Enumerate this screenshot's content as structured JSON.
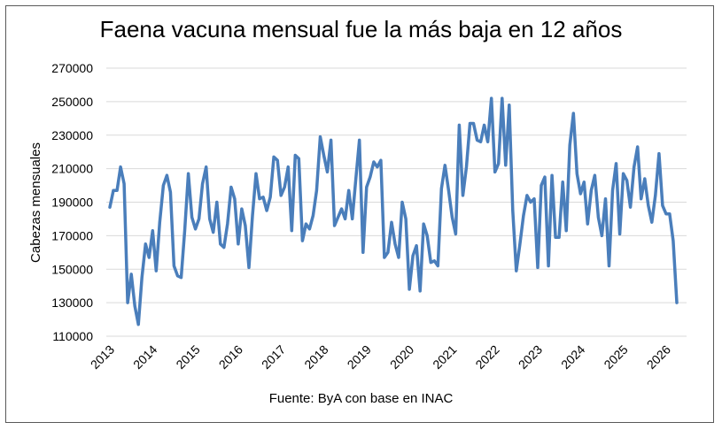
{
  "chart_data": {
    "type": "line",
    "title": "Faena vacuna mensual fue la más baja en 12 años",
    "ylabel": "Cabezas mensuales",
    "xlabel": "",
    "source": "Fuente: ByA con base en INAC",
    "ylim": [
      110000,
      270000
    ],
    "yticks": [
      "270000",
      "250000",
      "230000",
      "210000",
      "190000",
      "170000",
      "150000",
      "130000",
      "110000"
    ],
    "xticks": [
      "2013",
      "2014",
      "2015",
      "2016",
      "2017",
      "2018",
      "2019",
      "2020",
      "2021",
      "2022",
      "2023",
      "2024",
      "2025",
      "2026"
    ],
    "x_start": "2013-01",
    "grid": true,
    "legend": "none",
    "color": "#4a7ebb",
    "series": [
      {
        "values": [
          187000,
          197000,
          197000,
          211000,
          201000,
          130000,
          147000,
          128000,
          117000,
          145000,
          165000,
          157000,
          173000,
          149000,
          178000,
          200000,
          206000,
          196000,
          152000,
          146000,
          145000,
          173000,
          207000,
          181000,
          174000,
          180000,
          201000,
          211000,
          180000,
          172000,
          190000,
          165000,
          163000,
          177000,
          199000,
          192000,
          165000,
          186000,
          176000,
          151000,
          182000,
          207000,
          192000,
          193000,
          185000,
          193000,
          217000,
          215000,
          194000,
          199000,
          211000,
          173000,
          218000,
          216000,
          167000,
          177000,
          174000,
          182000,
          197000,
          229000,
          218000,
          208000,
          227000,
          176000,
          181000,
          186000,
          180000,
          197000,
          180000,
          204000,
          227000,
          160000,
          199000,
          205000,
          214000,
          211000,
          215000,
          157000,
          160000,
          178000,
          165000,
          157000,
          190000,
          180000,
          138000,
          158000,
          164000,
          137000,
          177000,
          170000,
          154000,
          155000,
          152000,
          198000,
          212000,
          197000,
          181000,
          171000,
          236000,
          194000,
          211000,
          237000,
          237000,
          227000,
          226000,
          236000,
          226000,
          252000,
          208000,
          213000,
          252000,
          212000,
          248000,
          185000,
          149000,
          165000,
          182000,
          194000,
          190000,
          192000,
          151000,
          200000,
          205000,
          152000,
          206000,
          169000,
          169000,
          202000,
          173000,
          224000,
          243000,
          207000,
          195000,
          202000,
          177000,
          197000,
          206000,
          181000,
          170000,
          192000,
          152000,
          197000,
          213000,
          171000,
          207000,
          203000,
          187000,
          211000,
          223000,
          192000,
          204000,
          188000,
          178000,
          194000,
          219000,
          188000,
          183000,
          183000,
          167000,
          130000
        ]
      }
    ]
  }
}
